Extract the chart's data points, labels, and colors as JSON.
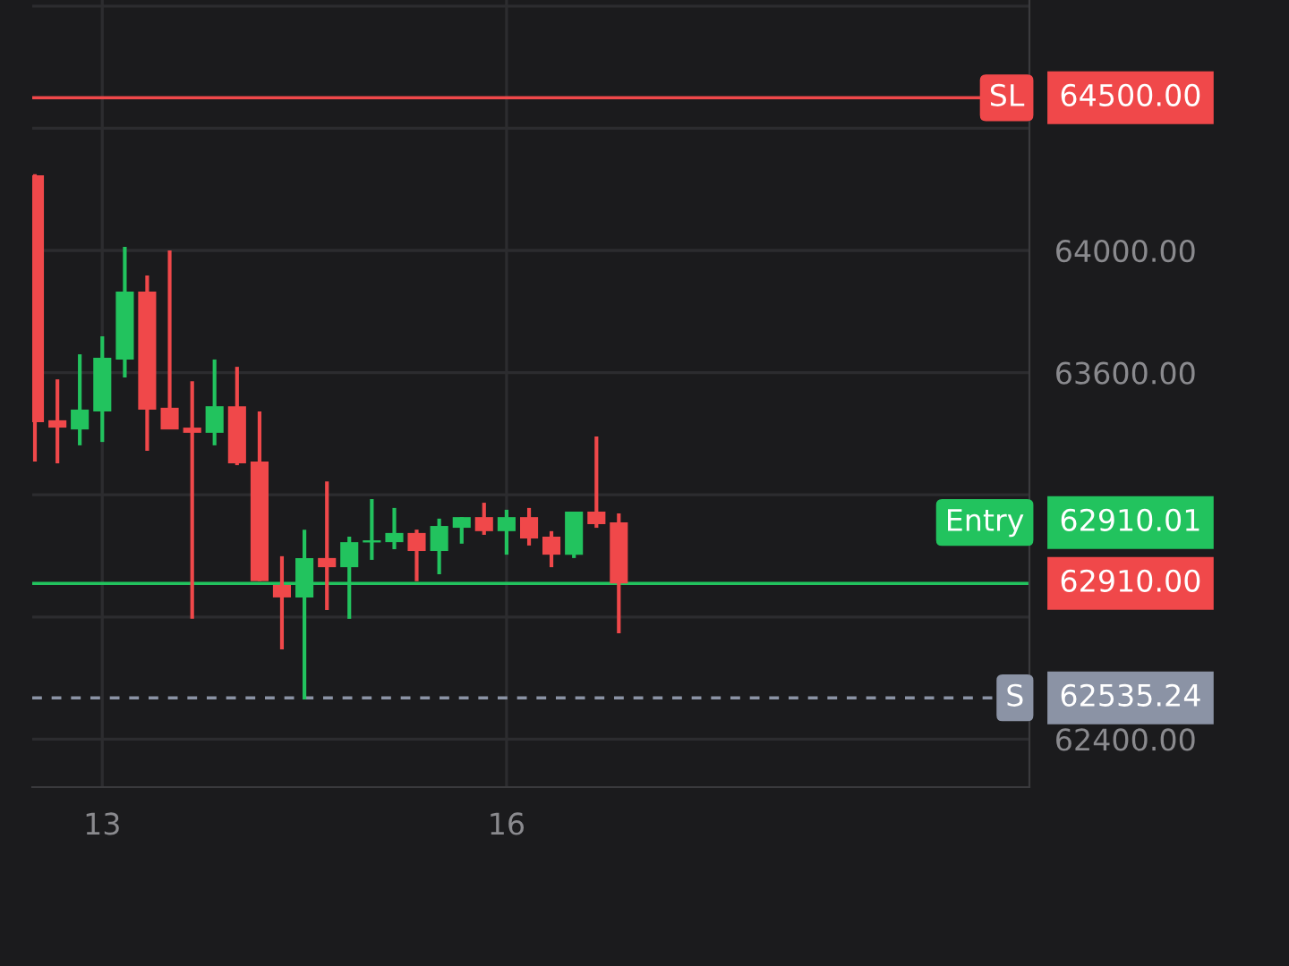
{
  "chart_data": {
    "type": "candlestick",
    "x": [
      12.5,
      12.667,
      12.833,
      13,
      13.167,
      13.333,
      13.5,
      13.667,
      13.833,
      14,
      14.167,
      14.333,
      14.5,
      14.667,
      14.833,
      15,
      15.167,
      15.333,
      15.5,
      15.667,
      15.833,
      16,
      16.167,
      16.333,
      16.5,
      16.667,
      16.833
    ],
    "ohlc": [
      [
        64246,
        64250,
        63309,
        63438
      ],
      [
        63444,
        63578,
        63303,
        63420
      ],
      [
        63414,
        63660,
        63362,
        63479
      ],
      [
        63473,
        63719,
        63373,
        63649
      ],
      [
        63643,
        64012,
        63584,
        63865
      ],
      [
        63865,
        63918,
        63344,
        63479
      ],
      [
        63485,
        64000,
        63414,
        63414
      ],
      [
        63420,
        63572,
        62794,
        63403
      ],
      [
        63403,
        63643,
        63362,
        63490
      ],
      [
        63490,
        63619,
        63297,
        63303
      ],
      [
        63309,
        63473,
        62917,
        62917
      ],
      [
        62905,
        62999,
        62694,
        62864
      ],
      [
        62864,
        63086,
        62530,
        62993
      ],
      [
        62993,
        63244,
        62823,
        62963
      ],
      [
        62963,
        63063,
        62794,
        63045
      ],
      [
        63044,
        63186,
        62987,
        63051
      ],
      [
        63045,
        63157,
        63022,
        63075
      ],
      [
        63075,
        63086,
        62917,
        63016
      ],
      [
        63016,
        63122,
        62940,
        63098
      ],
      [
        63092,
        63127,
        63040,
        63127
      ],
      [
        63127,
        63174,
        63069,
        63081
      ],
      [
        63081,
        63151,
        63004,
        63127
      ],
      [
        63127,
        63157,
        63034,
        63057
      ],
      [
        63063,
        63081,
        62963,
        63004
      ],
      [
        63004,
        63145,
        62993,
        63145
      ],
      [
        63145,
        63391,
        63092,
        63104
      ],
      [
        63110,
        63139,
        62747,
        62910
      ]
    ],
    "colors": [
      "#f0484a",
      "#f0484a",
      "#22c35e",
      "#22c35e",
      "#22c35e",
      "#f0484a",
      "#f0484a",
      "#f0484a",
      "#22c35e",
      "#f0484a",
      "#f0484a",
      "#f0484a",
      "#22c35e",
      "#f0484a",
      "#22c35e",
      "#22c35e",
      "#22c35e",
      "#f0484a",
      "#22c35e",
      "#22c35e",
      "#f0484a",
      "#22c35e",
      "#f0484a",
      "#f0484a",
      "#22c35e",
      "#f0484a",
      "#f0484a"
    ],
    "xlim": [
      12.48,
      19.88
    ],
    "xticks": [
      13,
      16
    ],
    "ylim": [
      62243,
      64820
    ],
    "yticks": [
      {
        "value": 62400,
        "label": "62400.00"
      },
      {
        "value": 62800,
        "label": null
      },
      {
        "value": 63200,
        "label": null
      },
      {
        "value": 63600,
        "label": "63600.00"
      },
      {
        "value": 64000,
        "label": "64000.00"
      },
      {
        "value": 64400,
        "label": null
      },
      {
        "value": 64800,
        "label": null
      }
    ],
    "grid": true,
    "ref_lines": [
      {
        "axis": "y",
        "value": 64500,
        "label": "SL",
        "color": "#f0484a",
        "line_style": "solid"
      },
      {
        "axis": "y",
        "value": 62910.01,
        "label": "Entry",
        "color": "#22c35e",
        "line_style": "solid"
      },
      {
        "axis": "y",
        "value": 62535.24,
        "label": "S",
        "color": "#8b93a5",
        "line_style": "dashed"
      }
    ],
    "annotations": [
      "64500.00",
      "62910.01",
      "62535.24",
      "62910.00"
    ]
  }
}
